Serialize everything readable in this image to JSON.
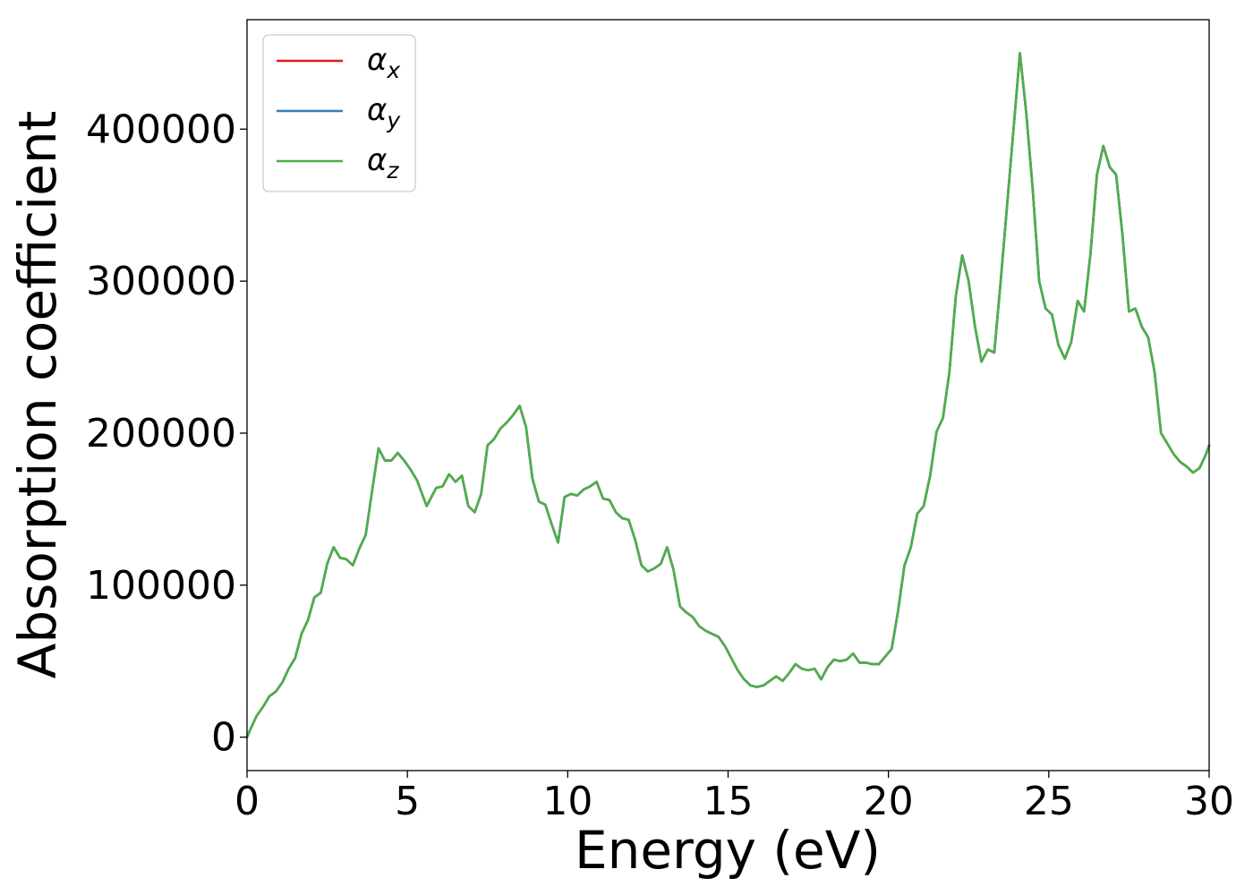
{
  "chart_data": {
    "type": "line",
    "title": "",
    "xlabel": "Energy (eV)",
    "ylabel": "Absorption coefficient",
    "xlim": [
      0,
      30
    ],
    "ylim": [
      -22000,
      472000
    ],
    "xticks": [
      0,
      5,
      10,
      15,
      20,
      25,
      30
    ],
    "yticks": [
      0,
      100000,
      200000,
      300000,
      400000
    ],
    "xtick_labels": [
      "0",
      "5",
      "10",
      "15",
      "20",
      "25",
      "30"
    ],
    "ytick_labels": [
      "0",
      "100000",
      "200000",
      "300000",
      "400000"
    ],
    "grid": false,
    "legend": {
      "position": "upper-left",
      "entries": [
        "α_x",
        "α_y",
        "α_z"
      ]
    },
    "x": [
      0,
      0.1,
      0.3,
      0.5,
      0.7,
      0.9,
      1.1,
      1.3,
      1.5,
      1.7,
      1.9,
      2.1,
      2.3,
      2.5,
      2.7,
      2.9,
      3.1,
      3.3,
      3.5,
      3.7,
      3.9,
      4.1,
      4.3,
      4.5,
      4.7,
      4.9,
      5.1,
      5.3,
      5.6,
      5.9,
      6.1,
      6.3,
      6.5,
      6.7,
      6.9,
      7.1,
      7.3,
      7.5,
      7.7,
      7.9,
      8.1,
      8.3,
      8.5,
      8.7,
      8.9,
      9.1,
      9.3,
      9.5,
      9.7,
      9.9,
      10.1,
      10.3,
      10.5,
      10.7,
      10.9,
      11.1,
      11.3,
      11.5,
      11.7,
      11.9,
      12.1,
      12.3,
      12.5,
      12.7,
      12.9,
      13.1,
      13.3,
      13.5,
      13.7,
      13.9,
      14.1,
      14.3,
      14.5,
      14.7,
      14.9,
      15.1,
      15.3,
      15.5,
      15.7,
      15.9,
      16.1,
      16.3,
      16.5,
      16.7,
      16.9,
      17.1,
      17.3,
      17.5,
      17.7,
      17.9,
      18.1,
      18.3,
      18.5,
      18.7,
      18.9,
      19.1,
      19.3,
      19.5,
      19.7,
      19.9,
      20.1,
      20.3,
      20.5,
      20.7,
      20.9,
      21.1,
      21.3,
      21.5,
      21.7,
      21.9,
      22.1,
      22.3,
      22.5,
      22.7,
      22.9,
      23.1,
      23.3,
      23.5,
      23.7,
      23.9,
      24.1,
      24.3,
      24.5,
      24.7,
      24.9,
      25.1,
      25.3,
      25.5,
      25.7,
      25.9,
      26.1,
      26.3,
      26.5,
      26.7,
      26.9,
      27.1,
      27.3,
      27.5,
      27.7,
      27.9,
      28.1,
      28.3,
      28.5,
      28.7,
      28.9,
      29.1,
      29.3,
      29.5,
      29.7,
      29.9,
      30
    ],
    "series": [
      {
        "name": "α_x",
        "color": "#e41a1c",
        "values": [
          0,
          5000,
          14000,
          20000,
          27000,
          30000,
          36000,
          45000,
          52000,
          68000,
          77000,
          92000,
          95000,
          114000,
          125000,
          118000,
          117000,
          113000,
          124000,
          133000,
          162000,
          190000,
          182000,
          182000,
          187000,
          182000,
          176000,
          169000,
          152000,
          164000,
          165000,
          173000,
          168000,
          172000,
          152000,
          148000,
          160000,
          192000,
          196000,
          203000,
          207000,
          212000,
          218000,
          204000,
          170000,
          155000,
          153000,
          140000,
          128000,
          158000,
          160000,
          159000,
          163000,
          165000,
          168000,
          157000,
          156000,
          148000,
          144000,
          143000,
          130000,
          113000,
          109000,
          111000,
          114000,
          125000,
          110000,
          86000,
          82000,
          79000,
          73000,
          70000,
          68000,
          66000,
          60000,
          52000,
          44000,
          38000,
          34000,
          33000,
          34000,
          37000,
          40000,
          37000,
          42000,
          48000,
          45000,
          44000,
          45000,
          38000,
          46000,
          51000,
          50000,
          51000,
          55000,
          49000,
          49000,
          48000,
          48000,
          53000,
          58000,
          83000,
          113000,
          125000,
          147000,
          152000,
          172000,
          201000,
          210000,
          240000,
          290000,
          317000,
          300000,
          270000,
          247000,
          255000,
          253000,
          300000,
          350000,
          400000,
          450000,
          410000,
          360000,
          300000,
          282000,
          278000,
          258000,
          249000,
          260000,
          287000,
          280000,
          318000,
          370000,
          389000,
          375000,
          370000,
          330000,
          280000,
          282000,
          270000,
          263000,
          240000,
          200000,
          193000,
          186000,
          181000,
          178000,
          174000,
          177000,
          186000,
          192000
        ]
      },
      {
        "name": "α_y",
        "color": "#377eb8",
        "values": [
          0,
          5000,
          14000,
          20000,
          27000,
          30000,
          36000,
          45000,
          52000,
          68000,
          77000,
          92000,
          95000,
          114000,
          125000,
          118000,
          117000,
          113000,
          124000,
          133000,
          162000,
          190000,
          182000,
          182000,
          187000,
          182000,
          176000,
          169000,
          152000,
          164000,
          165000,
          173000,
          168000,
          172000,
          152000,
          148000,
          160000,
          192000,
          196000,
          203000,
          207000,
          212000,
          218000,
          204000,
          170000,
          155000,
          153000,
          140000,
          128000,
          158000,
          160000,
          159000,
          163000,
          165000,
          168000,
          157000,
          156000,
          148000,
          144000,
          143000,
          130000,
          113000,
          109000,
          111000,
          114000,
          125000,
          110000,
          86000,
          82000,
          79000,
          73000,
          70000,
          68000,
          66000,
          60000,
          52000,
          44000,
          38000,
          34000,
          33000,
          34000,
          37000,
          40000,
          37000,
          42000,
          48000,
          45000,
          44000,
          45000,
          38000,
          46000,
          51000,
          50000,
          51000,
          55000,
          49000,
          49000,
          48000,
          48000,
          53000,
          58000,
          83000,
          113000,
          125000,
          147000,
          152000,
          172000,
          201000,
          210000,
          240000,
          290000,
          317000,
          300000,
          270000,
          247000,
          255000,
          253000,
          300000,
          350000,
          400000,
          450000,
          410000,
          360000,
          300000,
          282000,
          278000,
          258000,
          249000,
          260000,
          287000,
          280000,
          318000,
          370000,
          389000,
          375000,
          370000,
          330000,
          280000,
          282000,
          270000,
          263000,
          240000,
          200000,
          193000,
          186000,
          181000,
          178000,
          174000,
          177000,
          186000,
          192000
        ]
      },
      {
        "name": "α_z",
        "color": "#4daf4a",
        "values": [
          0,
          5000,
          14000,
          20000,
          27000,
          30000,
          36000,
          45000,
          52000,
          68000,
          77000,
          92000,
          95000,
          114000,
          125000,
          118000,
          117000,
          113000,
          124000,
          133000,
          162000,
          190000,
          182000,
          182000,
          187000,
          182000,
          176000,
          169000,
          152000,
          164000,
          165000,
          173000,
          168000,
          172000,
          152000,
          148000,
          160000,
          192000,
          196000,
          203000,
          207000,
          212000,
          218000,
          204000,
          170000,
          155000,
          153000,
          140000,
          128000,
          158000,
          160000,
          159000,
          163000,
          165000,
          168000,
          157000,
          156000,
          148000,
          144000,
          143000,
          130000,
          113000,
          109000,
          111000,
          114000,
          125000,
          110000,
          86000,
          82000,
          79000,
          73000,
          70000,
          68000,
          66000,
          60000,
          52000,
          44000,
          38000,
          34000,
          33000,
          34000,
          37000,
          40000,
          37000,
          42000,
          48000,
          45000,
          44000,
          45000,
          38000,
          46000,
          51000,
          50000,
          51000,
          55000,
          49000,
          49000,
          48000,
          48000,
          53000,
          58000,
          83000,
          113000,
          125000,
          147000,
          152000,
          172000,
          201000,
          210000,
          240000,
          290000,
          317000,
          300000,
          270000,
          247000,
          255000,
          253000,
          300000,
          350000,
          400000,
          450000,
          410000,
          360000,
          300000,
          282000,
          278000,
          258000,
          249000,
          260000,
          287000,
          280000,
          318000,
          370000,
          389000,
          375000,
          370000,
          330000,
          280000,
          282000,
          270000,
          263000,
          240000,
          200000,
          193000,
          186000,
          181000,
          178000,
          174000,
          177000,
          186000,
          192000
        ]
      }
    ]
  }
}
